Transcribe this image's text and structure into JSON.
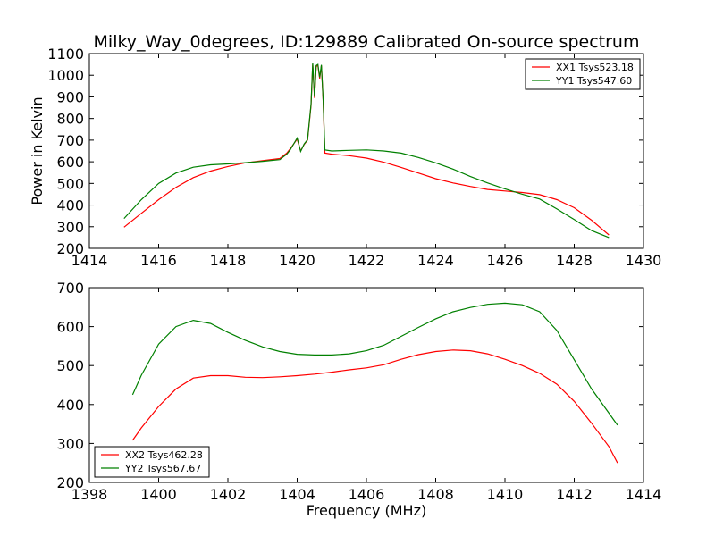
{
  "chart_data": [
    {
      "type": "line",
      "title": "Milky_Way_0degrees, ID:129889 Calibrated On-source spectrum",
      "xlabel": "",
      "ylabel": "Power in Kelvin",
      "xlim": [
        1414,
        1430
      ],
      "ylim": [
        200,
        1100
      ],
      "xticks": [
        "1414",
        "1416",
        "1418",
        "1420",
        "1422",
        "1424",
        "1426",
        "1428",
        "1430"
      ],
      "yticks": [
        "200",
        "300",
        "400",
        "500",
        "600",
        "700",
        "800",
        "900",
        "1000",
        "1100"
      ],
      "legend_position": "top-right",
      "grid": false,
      "series": [
        {
          "name": "XX1 Tsys523.18",
          "color": "#ff0000",
          "x": [
            1415.0,
            1415.5,
            1416.0,
            1416.5,
            1417.0,
            1417.5,
            1418.0,
            1418.5,
            1419.0,
            1419.5,
            1419.7,
            1419.8,
            1420.0,
            1420.1,
            1420.2,
            1420.3,
            1420.4,
            1420.45,
            1420.5,
            1420.55,
            1420.6,
            1420.65,
            1420.7,
            1420.75,
            1420.8,
            1421.0,
            1421.5,
            1422.0,
            1422.5,
            1423.0,
            1423.5,
            1424.0,
            1424.5,
            1425.0,
            1425.5,
            1426.0,
            1426.5,
            1427.0,
            1427.5,
            1428.0,
            1428.5,
            1429.0
          ],
          "y": [
            298,
            362,
            425,
            482,
            527,
            557,
            578,
            595,
            605,
            615,
            640,
            660,
            705,
            650,
            680,
            700,
            860,
            1050,
            895,
            1040,
            1045,
            985,
            1045,
            880,
            640,
            635,
            628,
            617,
            598,
            574,
            548,
            522,
            502,
            486,
            472,
            465,
            458,
            448,
            425,
            388,
            330,
            262
          ]
        },
        {
          "name": "YY1 Tsys547.60",
          "color": "#008000",
          "x": [
            1415.0,
            1415.5,
            1416.0,
            1416.5,
            1417.0,
            1417.5,
            1418.0,
            1418.5,
            1419.0,
            1419.5,
            1419.7,
            1419.8,
            1420.0,
            1420.1,
            1420.2,
            1420.3,
            1420.4,
            1420.45,
            1420.5,
            1420.55,
            1420.6,
            1420.65,
            1420.7,
            1420.75,
            1420.8,
            1421.0,
            1421.5,
            1422.0,
            1422.5,
            1423.0,
            1423.5,
            1424.0,
            1424.5,
            1425.0,
            1425.5,
            1426.0,
            1426.5,
            1427.0,
            1427.5,
            1428.0,
            1428.5,
            1429.0
          ],
          "y": [
            338,
            425,
            500,
            548,
            575,
            586,
            590,
            596,
            602,
            610,
            635,
            655,
            710,
            648,
            682,
            702,
            865,
            1055,
            900,
            1045,
            1050,
            990,
            1048,
            885,
            655,
            650,
            653,
            655,
            650,
            640,
            620,
            595,
            566,
            532,
            502,
            475,
            450,
            428,
            382,
            333,
            282,
            250
          ]
        }
      ]
    },
    {
      "type": "line",
      "title": "",
      "xlabel": "Frequency (MHz)",
      "ylabel": "",
      "xlim": [
        1398,
        1414
      ],
      "ylim": [
        200,
        700
      ],
      "xticks": [
        "1398",
        "1400",
        "1402",
        "1404",
        "1406",
        "1408",
        "1410",
        "1412",
        "1414"
      ],
      "yticks": [
        "200",
        "300",
        "400",
        "500",
        "600",
        "700"
      ],
      "legend_position": "bottom-left",
      "grid": false,
      "series": [
        {
          "name": "XX2 Tsys462.28",
          "color": "#ff0000",
          "x": [
            1399.25,
            1399.5,
            1400.0,
            1400.5,
            1401.0,
            1401.5,
            1402.0,
            1402.5,
            1403.0,
            1403.5,
            1404.0,
            1404.5,
            1405.0,
            1405.5,
            1406.0,
            1406.5,
            1407.0,
            1407.5,
            1408.0,
            1408.5,
            1409.0,
            1409.5,
            1410.0,
            1410.5,
            1411.0,
            1411.5,
            1412.0,
            1412.5,
            1413.0,
            1413.25
          ],
          "y": [
            308,
            340,
            395,
            440,
            468,
            474,
            474,
            470,
            469,
            471,
            474,
            478,
            483,
            489,
            494,
            502,
            516,
            528,
            536,
            540,
            538,
            530,
            516,
            500,
            480,
            452,
            408,
            352,
            292,
            250
          ]
        },
        {
          "name": "YY2 Tsys567.67",
          "color": "#008000",
          "x": [
            1399.25,
            1399.5,
            1400.0,
            1400.5,
            1401.0,
            1401.5,
            1402.0,
            1402.5,
            1403.0,
            1403.5,
            1404.0,
            1404.5,
            1405.0,
            1405.5,
            1406.0,
            1406.5,
            1407.0,
            1407.5,
            1408.0,
            1408.5,
            1409.0,
            1409.5,
            1410.0,
            1410.5,
            1411.0,
            1411.5,
            1412.0,
            1412.5,
            1413.0,
            1413.25
          ],
          "y": [
            425,
            475,
            555,
            600,
            616,
            608,
            585,
            565,
            548,
            536,
            529,
            527,
            527,
            530,
            538,
            552,
            575,
            598,
            620,
            638,
            649,
            657,
            660,
            656,
            638,
            590,
            515,
            440,
            378,
            347
          ]
        }
      ]
    }
  ]
}
